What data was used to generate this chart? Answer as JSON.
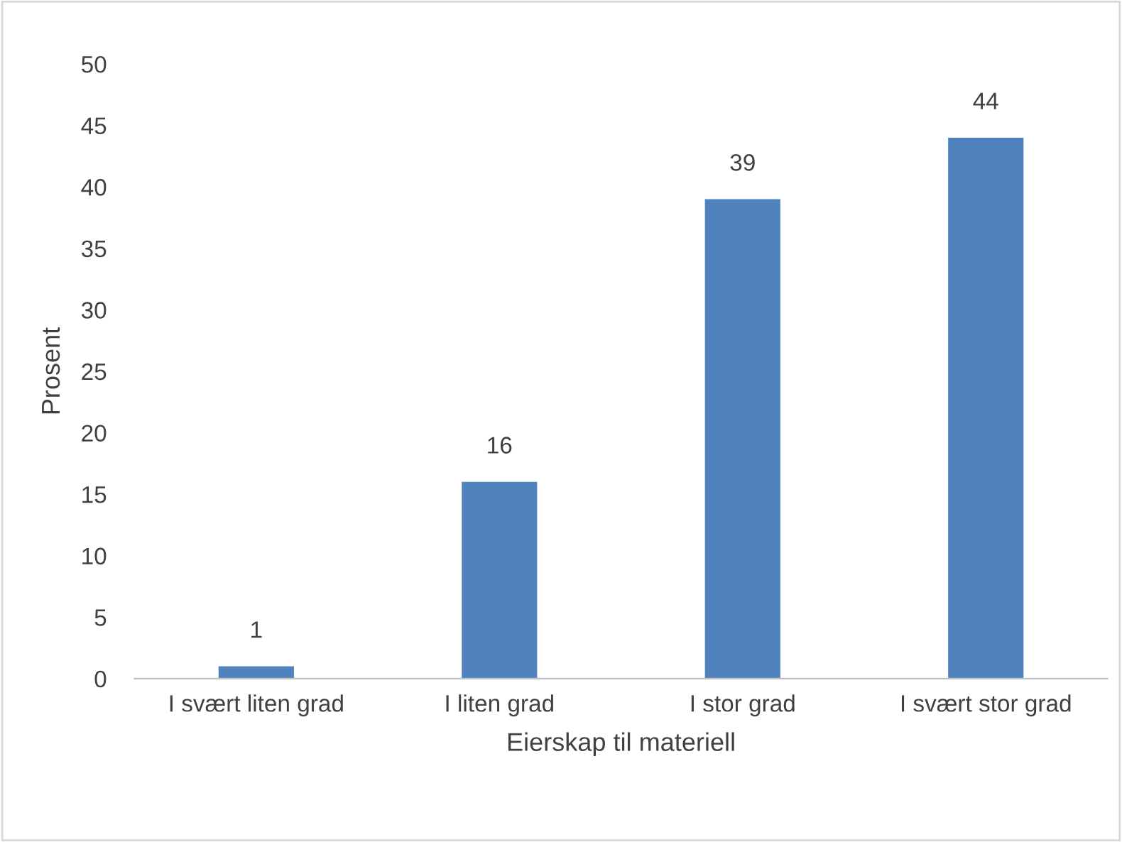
{
  "chart_data": {
    "type": "bar",
    "xlabel": "Eierskap til materiell",
    "ylabel": "Prosent",
    "categories": [
      "I svært liten grad",
      "I liten grad",
      "I stor grad",
      "I svært stor grad"
    ],
    "values": [
      1,
      16,
      39,
      44
    ],
    "color": "#4f81bd",
    "ylim": [
      0,
      50
    ],
    "yticks": [
      0,
      5,
      10,
      15,
      20,
      25,
      30,
      35,
      40,
      45,
      50
    ],
    "data_labels": true,
    "grid": false,
    "legend": false
  }
}
